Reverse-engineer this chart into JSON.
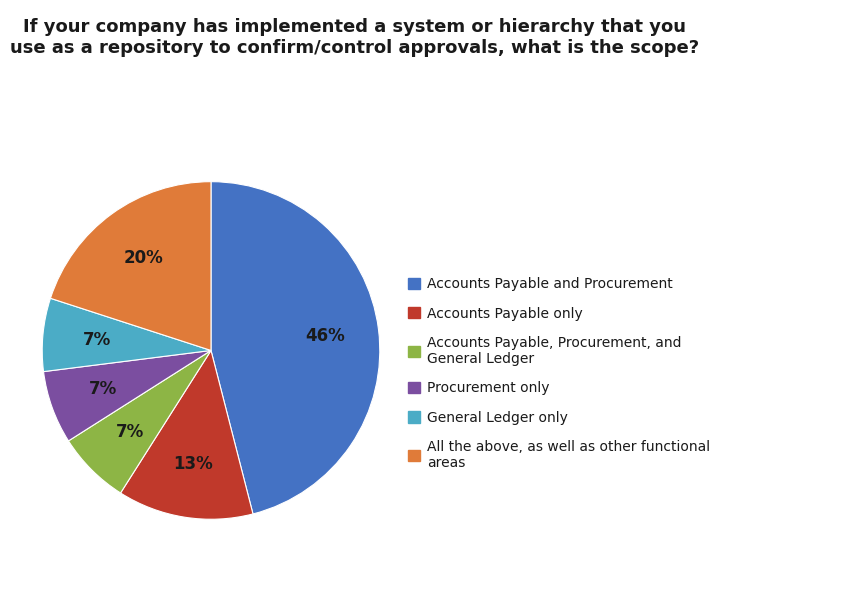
{
  "title": "If your company has implemented a system or hierarchy that you\nuse as a repository to confirm/control approvals, what is the scope?",
  "slices": [
    46,
    13,
    7,
    7,
    7,
    20
  ],
  "labels": [
    "46%",
    "13%",
    "7%",
    "7%",
    "7%",
    "20%"
  ],
  "colors": [
    "#4472C4",
    "#C0392B",
    "#8DB545",
    "#7B4EA0",
    "#4BACC6",
    "#E07B39"
  ],
  "legend_labels": [
    "Accounts Payable and Procurement",
    "Accounts Payable only",
    "Accounts Payable, Procurement, and\nGeneral Ledger",
    "Procurement only",
    "General Ledger only",
    "All the above, as well as other functional\nareas"
  ],
  "background_color": "#FFFFFF",
  "title_fontsize": 13,
  "legend_fontsize": 10,
  "label_fontsize": 12,
  "label_color": "#1A1A1A"
}
